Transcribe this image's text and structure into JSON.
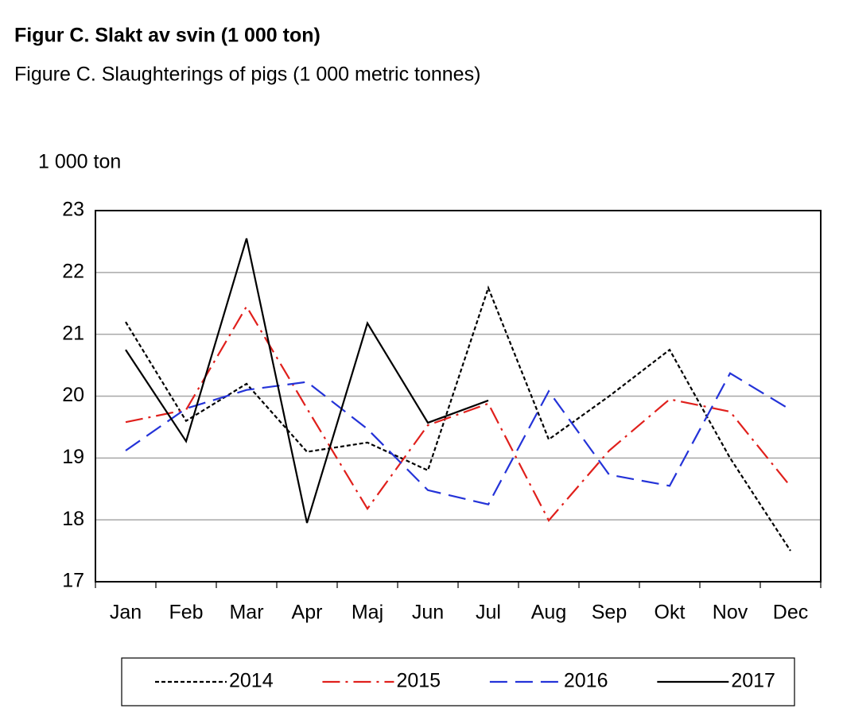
{
  "chart_data": {
    "type": "line",
    "title": "Figur C. Slakt av svin (1 000 ton)",
    "subtitle": "Figure C. Slaughterings of pigs (1 000 metric tonnes)",
    "y_axis_label": "1 000 ton",
    "categories": [
      "Jan",
      "Feb",
      "Mar",
      "Apr",
      "Maj",
      "Jun",
      "Jul",
      "Aug",
      "Sep",
      "Okt",
      "Nov",
      "Dec"
    ],
    "series": [
      {
        "name": "2014",
        "color": "#000000",
        "dash": "dotted",
        "values": [
          21.2,
          19.6,
          20.2,
          19.1,
          19.25,
          18.8,
          21.75,
          19.3,
          20.0,
          20.75,
          19.0,
          17.5
        ]
      },
      {
        "name": "2015",
        "color": "#e0201c",
        "dash": "dashdot",
        "values": [
          19.58,
          19.78,
          21.45,
          19.8,
          18.18,
          19.53,
          19.88,
          17.99,
          19.12,
          19.95,
          19.75,
          18.54
        ]
      },
      {
        "name": "2016",
        "color": "#2433d8",
        "dash": "dashed",
        "values": [
          19.12,
          19.8,
          20.1,
          20.23,
          19.47,
          18.48,
          18.25,
          20.08,
          18.73,
          18.55,
          20.37,
          19.78
        ]
      },
      {
        "name": "2017",
        "color": "#000000",
        "dash": "solid",
        "values": [
          20.75,
          19.27,
          22.55,
          17.95,
          21.18,
          19.57,
          19.93,
          null,
          null,
          null,
          null,
          null
        ]
      }
    ],
    "ylim": [
      17,
      23
    ],
    "yticks": [
      17,
      18,
      19,
      20,
      21,
      22,
      23
    ],
    "grid": true,
    "legend": "bottom"
  }
}
